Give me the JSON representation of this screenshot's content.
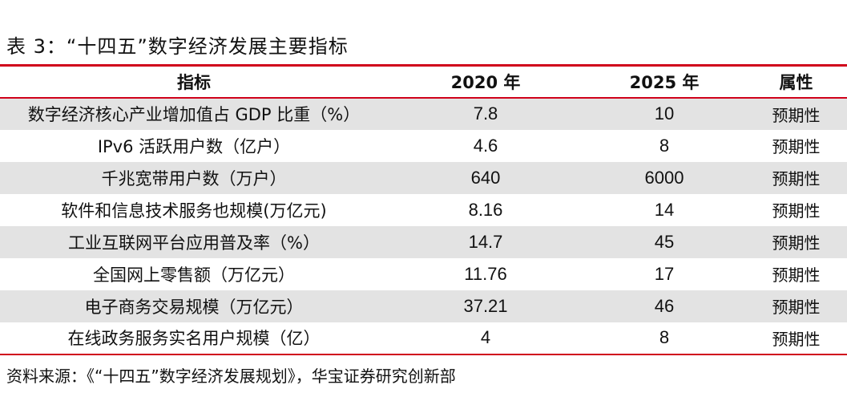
{
  "title": "表 3：“十四五”数字经济发展主要指标",
  "headers": [
    "指标",
    "2020 年",
    "2025 年",
    "属性"
  ],
  "rows": [
    {
      "indicator": "数字经济核心产业增加值占 GDP 比重（%）",
      "y2020": "7.8",
      "y2025": "10",
      "attr": "预期性"
    },
    {
      "indicator": "IPv6 活跃用户数（亿户）",
      "y2020": "4.6",
      "y2025": "8",
      "attr": "预期性"
    },
    {
      "indicator": "千兆宽带用户数（万户）",
      "y2020": "640",
      "y2025": "6000",
      "attr": "预期性"
    },
    {
      "indicator": "软件和信息技术服务也规模(万亿元)",
      "y2020": "8.16",
      "y2025": "14",
      "attr": "预期性"
    },
    {
      "indicator": "工业互联网平台应用普及率（%）",
      "y2020": "14.7",
      "y2025": "45",
      "attr": "预期性"
    },
    {
      "indicator": "全国网上零售额（万亿元）",
      "y2020": "11.76",
      "y2025": "17",
      "attr": "预期性"
    },
    {
      "indicator": "电子商务交易规模（万亿元）",
      "y2020": "37.21",
      "y2025": "46",
      "attr": "预期性"
    },
    {
      "indicator": "在线政务服务实名用户规模（亿）",
      "y2020": "4",
      "y2025": "8",
      "attr": "预期性"
    }
  ],
  "source": "资料来源：《“十四五”数字经济发展规划》，华宝证券研究创新部",
  "colors": {
    "rule": "#d0021b",
    "stripe": "#e3e3e3"
  }
}
